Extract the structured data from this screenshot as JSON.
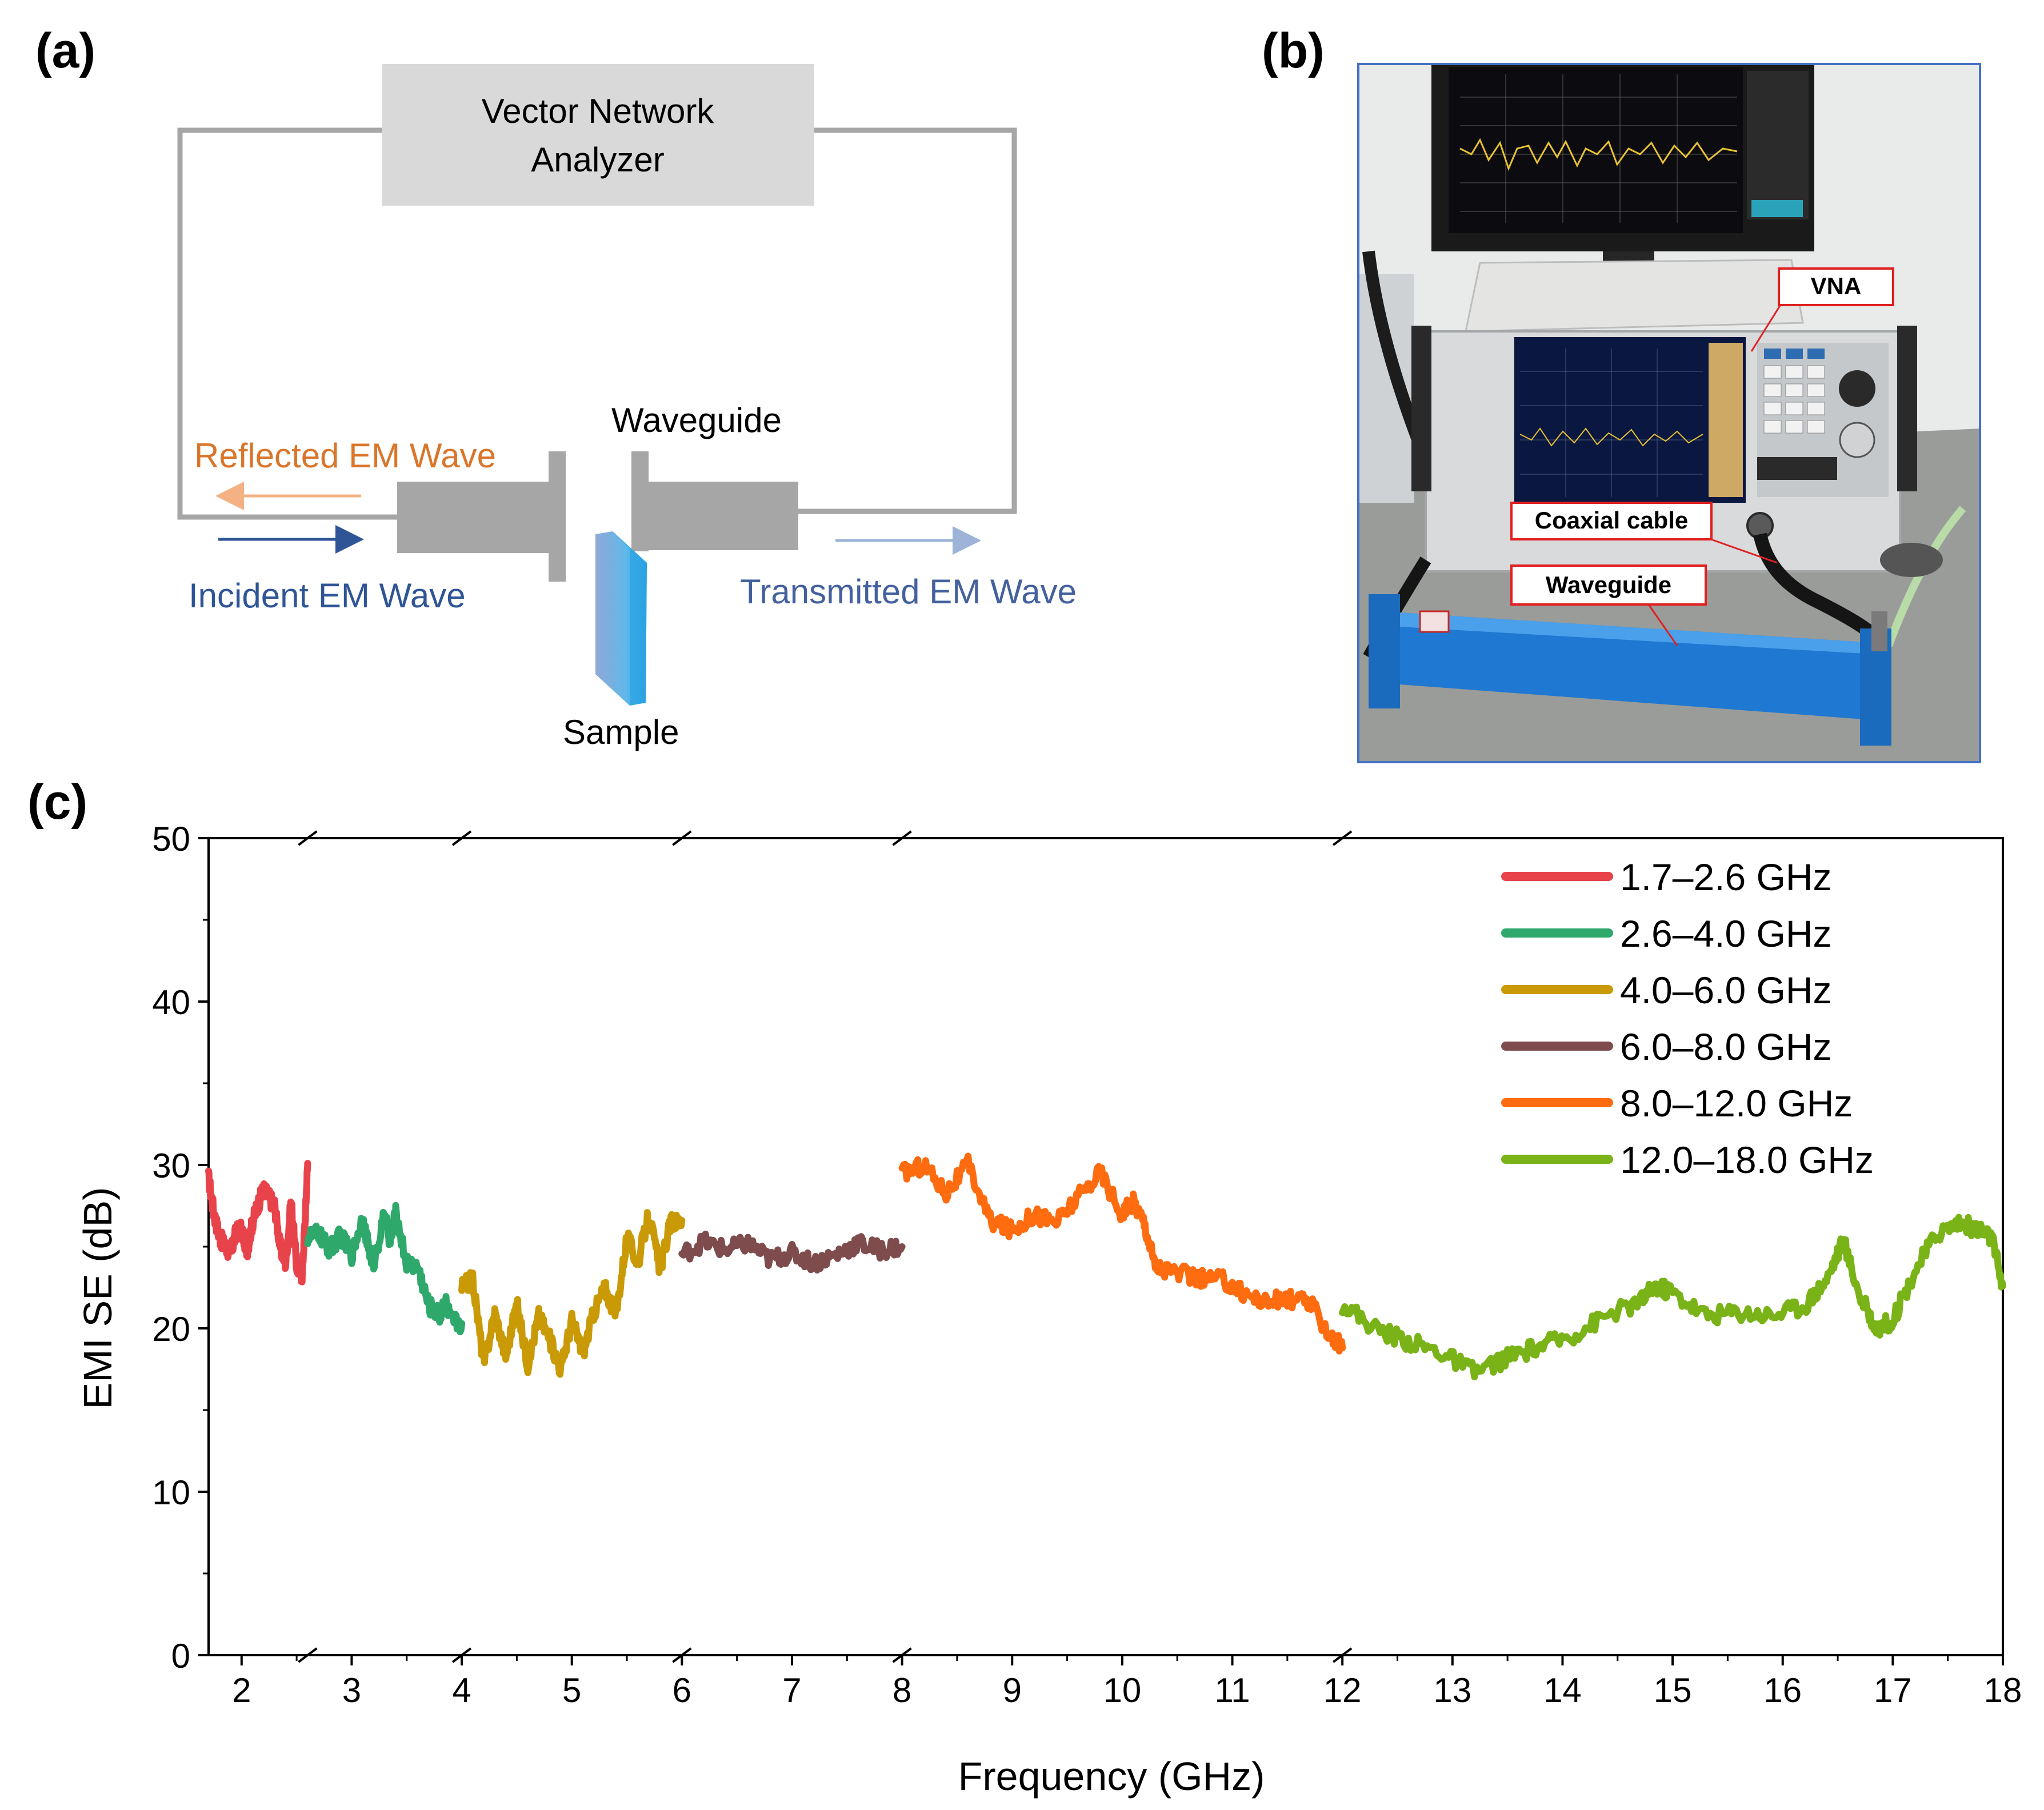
{
  "panels": {
    "a": "(a)",
    "b": "(b)",
    "c": "(c)"
  },
  "diagram": {
    "vna_line1": "Vector Network",
    "vna_line2": "Analyzer",
    "waveguide": "Waveguide",
    "reflected": "Reflected EM Wave",
    "incident": "Incident EM Wave",
    "transmitted": "Transmitted EM Wave",
    "sample": "Sample",
    "colors": {
      "reflected": "#d9762b",
      "incident": "#2f5597",
      "transmitted": "#44619e",
      "sample": "#3fb6e8",
      "box": "#d9d9d9",
      "waveguide": "#a6a6a6"
    }
  },
  "photo": {
    "callouts": {
      "vna": "VNA",
      "coax": "Coaxial cable",
      "waveguide": "Waveguide"
    },
    "colors": {
      "border": "#4472c4",
      "callout_border": "#e02020",
      "waveguide": "#1f78d1"
    }
  },
  "chart_data": {
    "type": "line",
    "xlabel": "Frequency (GHz)",
    "ylabel": "EMI SE (dB)",
    "xlim": [
      1.7,
      18
    ],
    "ylim": [
      0,
      50
    ],
    "x_ticks": [
      "2",
      "3",
      "4",
      "5",
      "6",
      "7",
      "8",
      "9",
      "10",
      "11",
      "12",
      "13",
      "14",
      "15",
      "16",
      "17",
      "18"
    ],
    "y_ticks": [
      "0",
      "10",
      "20",
      "30",
      "40",
      "50"
    ],
    "axis_breaks": [
      2.6,
      4.0,
      6.0,
      8.0,
      12.0
    ],
    "legend_position": "top-right",
    "series": [
      {
        "name": "1.7–2.6 GHz",
        "color": "#e8434a",
        "points": [
          [
            1.7,
            29.2
          ],
          [
            1.75,
            27.0
          ],
          [
            1.8,
            25.6
          ],
          [
            1.85,
            25.0
          ],
          [
            1.9,
            24.6
          ],
          [
            1.95,
            25.9
          ],
          [
            2.0,
            26.0
          ],
          [
            2.05,
            24.8
          ],
          [
            2.1,
            26.5
          ],
          [
            2.15,
            27.6
          ],
          [
            2.2,
            28.5
          ],
          [
            2.25,
            28.0
          ],
          [
            2.3,
            27.5
          ],
          [
            2.35,
            25.0
          ],
          [
            2.4,
            24.0
          ],
          [
            2.45,
            27.8
          ],
          [
            2.5,
            23.8
          ],
          [
            2.55,
            23.3
          ],
          [
            2.58,
            27.0
          ],
          [
            2.6,
            30.1
          ]
        ]
      },
      {
        "name": "2.6–4.0 GHz",
        "color": "#2fa86b",
        "points": [
          [
            2.6,
            25.6
          ],
          [
            2.7,
            25.8
          ],
          [
            2.8,
            24.8
          ],
          [
            2.9,
            25.7
          ],
          [
            3.0,
            24.5
          ],
          [
            3.1,
            26.8
          ],
          [
            3.15,
            25.0
          ],
          [
            3.2,
            24.0
          ],
          [
            3.3,
            27.0
          ],
          [
            3.35,
            25.3
          ],
          [
            3.4,
            27.0
          ],
          [
            3.5,
            24.0
          ],
          [
            3.6,
            23.8
          ],
          [
            3.7,
            21.4
          ],
          [
            3.8,
            20.8
          ],
          [
            3.85,
            21.7
          ],
          [
            3.9,
            20.5
          ],
          [
            4.0,
            20.3
          ]
        ]
      },
      {
        "name": "4.0–6.0 GHz",
        "color": "#c99a06",
        "points": [
          [
            4.0,
            22.5
          ],
          [
            4.1,
            23.0
          ],
          [
            4.2,
            17.8
          ],
          [
            4.3,
            21.0
          ],
          [
            4.4,
            18.3
          ],
          [
            4.5,
            21.5
          ],
          [
            4.6,
            17.8
          ],
          [
            4.7,
            20.8
          ],
          [
            4.8,
            19.3
          ],
          [
            4.9,
            17.5
          ],
          [
            5.0,
            20.5
          ],
          [
            5.1,
            18.5
          ],
          [
            5.2,
            21.0
          ],
          [
            5.3,
            22.5
          ],
          [
            5.4,
            20.8
          ],
          [
            5.5,
            25.6
          ],
          [
            5.6,
            24.0
          ],
          [
            5.7,
            27.0
          ],
          [
            5.8,
            23.6
          ],
          [
            5.9,
            26.5
          ],
          [
            6.0,
            26.6
          ]
        ]
      },
      {
        "name": "6.0–8.0 GHz",
        "color": "#7f4c4d",
        "points": [
          [
            6.0,
            24.5
          ],
          [
            6.2,
            25.3
          ],
          [
            6.4,
            24.8
          ],
          [
            6.6,
            25.2
          ],
          [
            6.8,
            24.2
          ],
          [
            7.0,
            24.6
          ],
          [
            7.2,
            24.0
          ],
          [
            7.4,
            24.5
          ],
          [
            7.6,
            25.2
          ],
          [
            7.8,
            24.8
          ],
          [
            8.0,
            25.0
          ]
        ]
      },
      {
        "name": "8.0–12.0 GHz",
        "color": "#ff6b0f",
        "points": [
          [
            8.0,
            29.5
          ],
          [
            8.2,
            30.0
          ],
          [
            8.4,
            28.3
          ],
          [
            8.6,
            30.0
          ],
          [
            8.8,
            26.6
          ],
          [
            9.0,
            26.0
          ],
          [
            9.2,
            27.0
          ],
          [
            9.4,
            26.5
          ],
          [
            9.6,
            28.0
          ],
          [
            9.8,
            29.6
          ],
          [
            10.0,
            27.0
          ],
          [
            10.1,
            27.8
          ],
          [
            10.2,
            26.5
          ],
          [
            10.3,
            23.8
          ],
          [
            10.5,
            23.4
          ],
          [
            10.7,
            23.0
          ],
          [
            10.9,
            23.0
          ],
          [
            11.1,
            22.2
          ],
          [
            11.3,
            21.6
          ],
          [
            11.5,
            21.8
          ],
          [
            11.7,
            21.6
          ],
          [
            11.9,
            19.5
          ],
          [
            12.0,
            18.8
          ]
        ]
      },
      {
        "name": "12.0–18.0 GHz",
        "color": "#7ab318",
        "points": [
          [
            12.0,
            21.5
          ],
          [
            12.3,
            20.0
          ],
          [
            12.6,
            19.2
          ],
          [
            12.9,
            18.5
          ],
          [
            13.2,
            17.3
          ],
          [
            13.5,
            18.2
          ],
          [
            13.8,
            18.9
          ],
          [
            14.1,
            19.6
          ],
          [
            14.4,
            20.8
          ],
          [
            14.7,
            21.6
          ],
          [
            14.85,
            22.6
          ],
          [
            15.0,
            22.2
          ],
          [
            15.3,
            20.8
          ],
          [
            15.6,
            21.0
          ],
          [
            15.9,
            20.8
          ],
          [
            16.2,
            21.4
          ],
          [
            16.4,
            23.0
          ],
          [
            16.55,
            25.4
          ],
          [
            16.7,
            22.0
          ],
          [
            16.85,
            20.0
          ],
          [
            17.0,
            20.5
          ],
          [
            17.2,
            23.5
          ],
          [
            17.4,
            25.8
          ],
          [
            17.6,
            26.5
          ],
          [
            17.8,
            26.0
          ],
          [
            17.9,
            25.5
          ],
          [
            18.0,
            22.6
          ]
        ]
      }
    ]
  }
}
